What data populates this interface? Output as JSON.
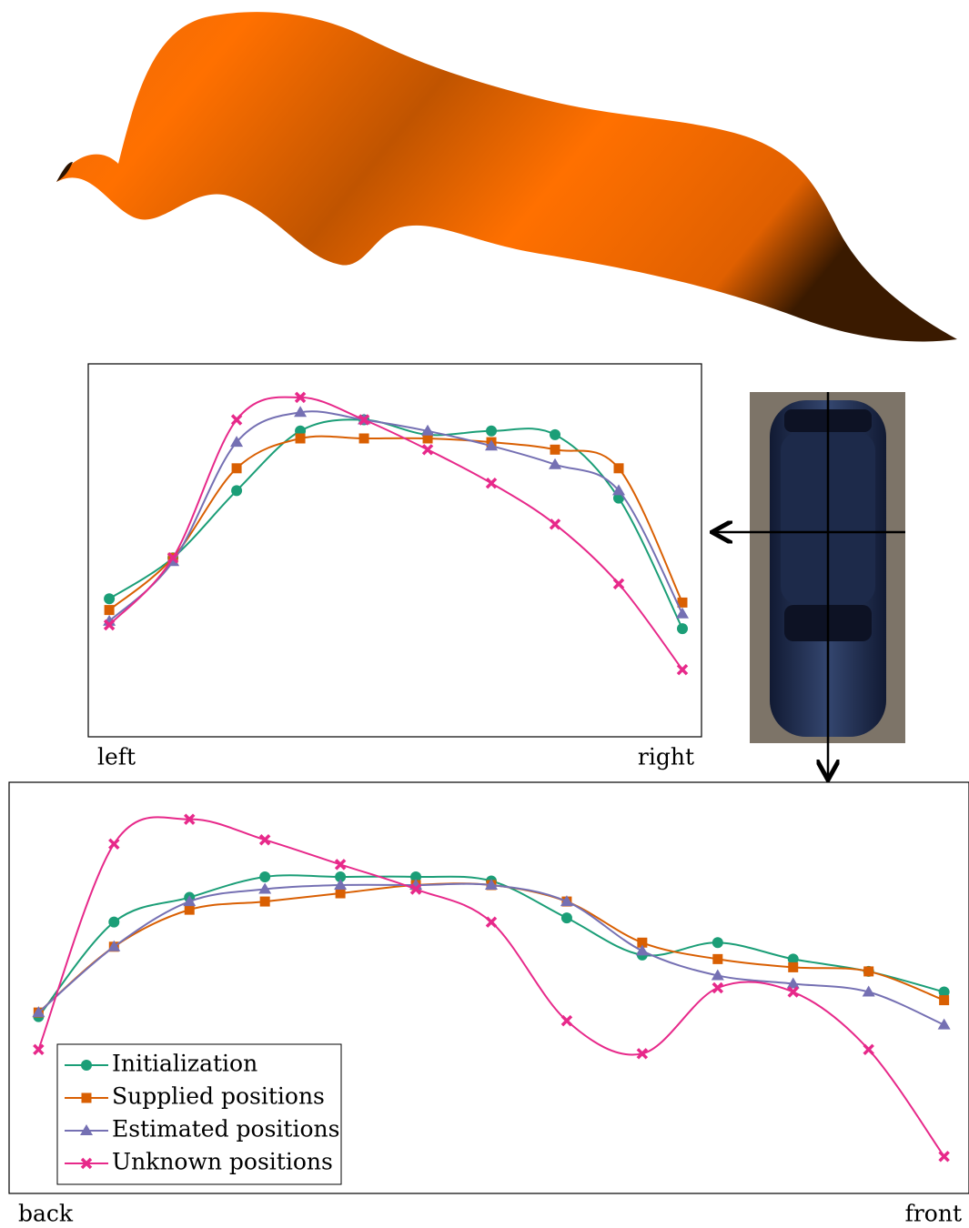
{
  "chart_data": [
    {
      "type": "line",
      "x_start_label": "left",
      "x_end_label": "right",
      "legend": false,
      "x": [
        1,
        2,
        3,
        4,
        5,
        6,
        7,
        8,
        9,
        10
      ],
      "xlim": [
        0.67,
        10.3
      ],
      "ylim": [
        0,
        100
      ],
      "series": [
        {
          "name": "Initialization",
          "color": "#1b9e77",
          "marker": "circle",
          "values": [
            37,
            48,
            66,
            82,
            85,
            81,
            82,
            81,
            64,
            29
          ]
        },
        {
          "name": "Supplied positions",
          "color": "#d95f02",
          "marker": "square",
          "values": [
            34,
            48,
            72,
            80,
            80,
            80,
            79,
            77,
            72,
            36
          ]
        },
        {
          "name": "Estimated positions",
          "color": "#7570b3",
          "marker": "triangle",
          "values": [
            31,
            47,
            79,
            87,
            85,
            82,
            78,
            73,
            66,
            33
          ]
        },
        {
          "name": "Unknown positions",
          "color": "#e7298a",
          "marker": "cross",
          "values": [
            30,
            48,
            85,
            91,
            85,
            77,
            68,
            57,
            41,
            18
          ]
        }
      ]
    },
    {
      "type": "line",
      "x_start_label": "back",
      "x_end_label": "front",
      "legend": "lower left",
      "x": [
        1,
        2,
        3,
        4,
        5,
        6,
        7,
        8,
        9,
        10,
        11,
        12,
        13
      ],
      "xlim": [
        0.61,
        13.33
      ],
      "ylim": [
        0,
        100
      ],
      "series": [
        {
          "name": "Initialization",
          "color": "#1b9e77",
          "marker": "circle",
          "values": [
            43,
            66,
            72,
            77,
            77,
            77,
            76,
            67,
            58,
            61,
            57,
            54,
            49
          ]
        },
        {
          "name": "Supplied positions",
          "color": "#d95f02",
          "marker": "square",
          "values": [
            44,
            60,
            69,
            71,
            73,
            75,
            75,
            71,
            61,
            57,
            55,
            54,
            47
          ]
        },
        {
          "name": "Estimated positions",
          "color": "#7570b3",
          "marker": "triangle",
          "values": [
            44,
            60,
            71,
            74,
            75,
            75,
            75,
            71,
            59,
            53,
            51,
            49,
            41
          ]
        },
        {
          "name": "Unknown positions",
          "color": "#e7298a",
          "marker": "cross",
          "values": [
            35,
            85,
            91,
            86,
            80,
            74,
            66,
            42,
            34,
            50,
            49,
            35,
            9
          ]
        }
      ]
    }
  ]
}
